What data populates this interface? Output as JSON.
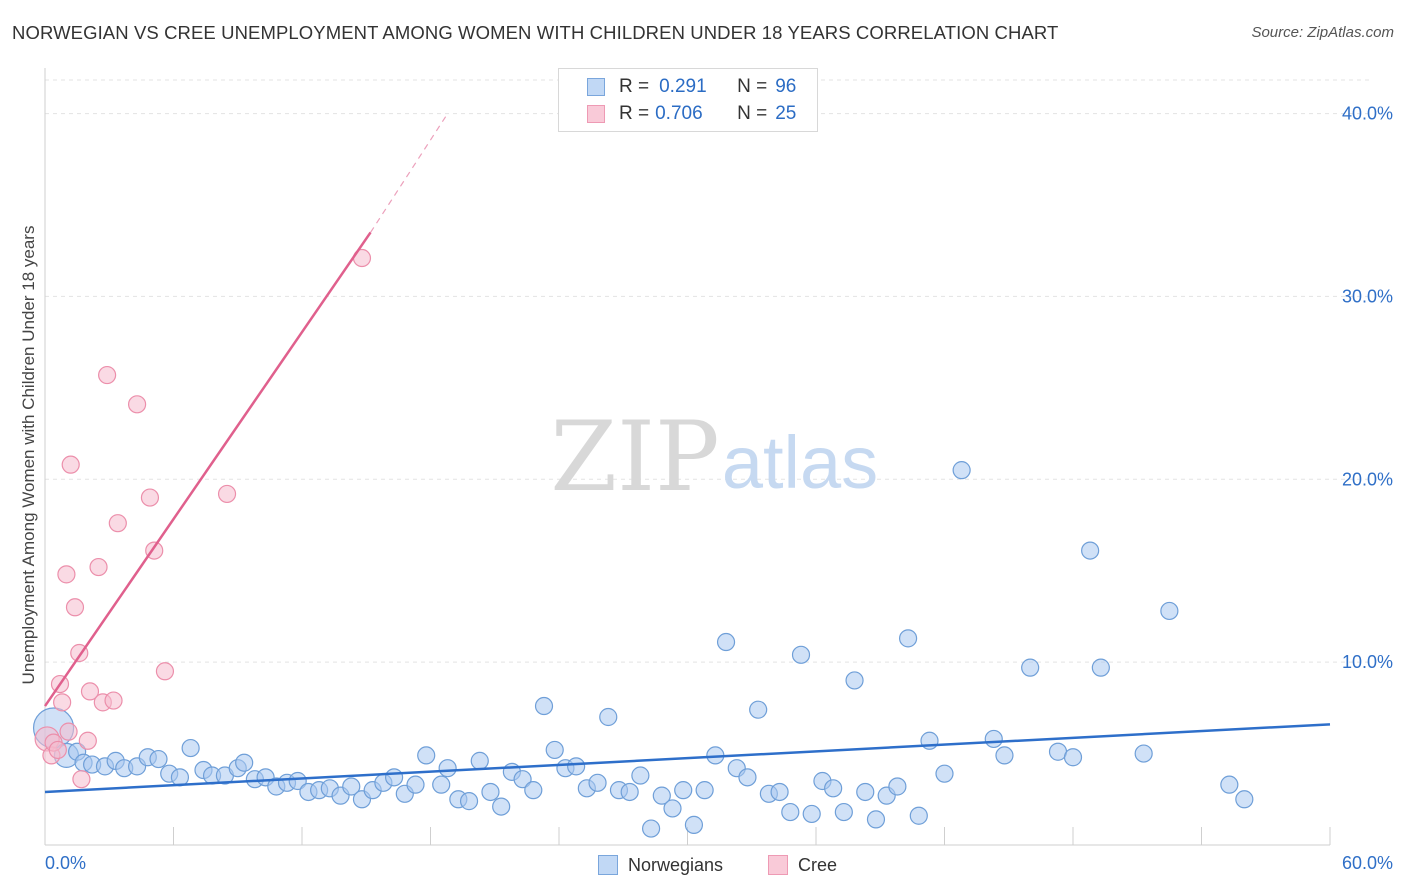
{
  "title": "NORWEGIAN VS CREE UNEMPLOYMENT AMONG WOMEN WITH CHILDREN UNDER 18 YEARS CORRELATION CHART",
  "source": "Source: ZipAtlas.com",
  "watermark": {
    "zip": "ZIP",
    "atlas": "atlas"
  },
  "legend": {
    "r_label": "R =",
    "n_label": "N =",
    "rows": [
      {
        "r": "0.291",
        "n": "96"
      },
      {
        "r": "0.706",
        "n": "25"
      }
    ]
  },
  "chart_data": {
    "type": "scatter",
    "title": "NORWEGIAN VS CREE UNEMPLOYMENT AMONG WOMEN WITH CHILDREN UNDER 18 YEARS CORRELATION CHART",
    "xlabel": "",
    "ylabel": "Unemployment Among Women with Children Under 18 years",
    "xlim": [
      0,
      60
    ],
    "ylim": [
      0,
      42
    ],
    "x_tick_labels": [
      "0.0%",
      "60.0%"
    ],
    "y_ticks": [
      10,
      20,
      30,
      40
    ],
    "y_tick_labels": [
      "10.0%",
      "20.0%",
      "30.0%",
      "40.0%"
    ],
    "grid": true,
    "legend_position": "top-center",
    "series": [
      {
        "name": "Norwegians",
        "color": "#a9c8f0",
        "edge": "#6f9fd8",
        "line_color": "#2e6fca",
        "trend": {
          "x0": 0,
          "y0": 2.9,
          "x1": 60,
          "y1": 6.6
        },
        "points": [
          [
            0.4,
            6.4,
            "l"
          ],
          [
            1.0,
            4.9,
            "m"
          ],
          [
            1.5,
            5.1
          ],
          [
            1.8,
            4.5
          ],
          [
            2.2,
            4.4
          ],
          [
            2.8,
            4.3
          ],
          [
            3.3,
            4.6
          ],
          [
            3.7,
            4.2
          ],
          [
            4.3,
            4.3
          ],
          [
            4.8,
            4.8
          ],
          [
            5.3,
            4.7
          ],
          [
            5.8,
            3.9
          ],
          [
            6.3,
            3.7
          ],
          [
            6.8,
            5.3
          ],
          [
            7.4,
            4.1
          ],
          [
            7.8,
            3.8
          ],
          [
            8.4,
            3.8
          ],
          [
            9.0,
            4.2
          ],
          [
            9.3,
            4.5
          ],
          [
            9.8,
            3.6
          ],
          [
            10.3,
            3.7
          ],
          [
            10.8,
            3.2
          ],
          [
            11.3,
            3.4
          ],
          [
            11.8,
            3.5
          ],
          [
            12.3,
            2.9
          ],
          [
            12.8,
            3.0
          ],
          [
            13.3,
            3.1
          ],
          [
            13.8,
            2.7
          ],
          [
            14.3,
            3.2
          ],
          [
            14.8,
            2.5
          ],
          [
            15.3,
            3.0
          ],
          [
            15.8,
            3.4
          ],
          [
            16.3,
            3.7
          ],
          [
            16.8,
            2.8
          ],
          [
            17.3,
            3.3
          ],
          [
            17.8,
            4.9
          ],
          [
            18.5,
            3.3
          ],
          [
            18.8,
            4.2
          ],
          [
            19.3,
            2.5
          ],
          [
            19.8,
            2.4
          ],
          [
            20.3,
            4.6
          ],
          [
            20.8,
            2.9
          ],
          [
            21.3,
            2.1
          ],
          [
            21.8,
            4.0
          ],
          [
            22.3,
            3.6
          ],
          [
            22.8,
            3.0
          ],
          [
            23.3,
            7.6
          ],
          [
            23.8,
            5.2
          ],
          [
            24.3,
            4.2
          ],
          [
            24.8,
            4.3
          ],
          [
            25.3,
            3.1
          ],
          [
            25.8,
            3.4
          ],
          [
            26.3,
            7.0
          ],
          [
            26.8,
            3.0
          ],
          [
            27.3,
            2.9
          ],
          [
            27.8,
            3.8
          ],
          [
            28.3,
            0.9
          ],
          [
            28.8,
            2.7
          ],
          [
            29.3,
            2.0
          ],
          [
            29.8,
            3.0
          ],
          [
            30.3,
            1.1
          ],
          [
            30.8,
            3.0
          ],
          [
            31.3,
            4.9
          ],
          [
            31.8,
            11.1
          ],
          [
            32.3,
            4.2
          ],
          [
            32.8,
            3.7
          ],
          [
            33.3,
            7.4
          ],
          [
            33.8,
            2.8
          ],
          [
            34.3,
            2.9
          ],
          [
            34.8,
            1.8
          ],
          [
            35.3,
            10.4
          ],
          [
            35.8,
            1.7
          ],
          [
            36.3,
            3.5
          ],
          [
            36.8,
            3.1
          ],
          [
            37.3,
            1.8
          ],
          [
            37.8,
            9.0
          ],
          [
            38.3,
            2.9
          ],
          [
            38.8,
            1.4
          ],
          [
            39.3,
            2.7
          ],
          [
            39.8,
            3.2
          ],
          [
            40.3,
            11.3
          ],
          [
            40.8,
            1.6
          ],
          [
            41.3,
            5.7
          ],
          [
            42.0,
            3.9
          ],
          [
            42.8,
            20.5
          ],
          [
            44.3,
            5.8
          ],
          [
            44.8,
            4.9
          ],
          [
            46.0,
            9.7
          ],
          [
            47.3,
            5.1
          ],
          [
            48.0,
            4.8
          ],
          [
            48.8,
            16.1
          ],
          [
            49.3,
            9.7
          ],
          [
            51.3,
            5.0
          ],
          [
            52.5,
            12.8
          ],
          [
            55.3,
            3.3
          ],
          [
            56.0,
            2.5
          ]
        ]
      },
      {
        "name": "Cree",
        "color": "#f6bccd",
        "edge": "#ec8fab",
        "line_color": "#e0608d",
        "trend": {
          "x0": 0,
          "y0": 7.6,
          "x1": 15.2,
          "y1": 33.5,
          "dash_to_x": 18.8,
          "dash_to_y": 40.0
        },
        "points": [
          [
            0.1,
            5.8,
            "m"
          ],
          [
            0.3,
            4.9
          ],
          [
            0.4,
            5.6
          ],
          [
            0.6,
            5.2
          ],
          [
            0.7,
            8.8
          ],
          [
            0.8,
            7.8
          ],
          [
            1.0,
            14.8
          ],
          [
            1.1,
            6.2
          ],
          [
            1.2,
            20.8
          ],
          [
            1.4,
            13.0
          ],
          [
            1.6,
            10.5
          ],
          [
            1.7,
            3.6
          ],
          [
            2.0,
            5.7
          ],
          [
            2.1,
            8.4
          ],
          [
            2.5,
            15.2
          ],
          [
            2.7,
            7.8
          ],
          [
            2.9,
            25.7
          ],
          [
            3.2,
            7.9
          ],
          [
            3.4,
            17.6
          ],
          [
            4.3,
            24.1
          ],
          [
            4.9,
            19.0
          ],
          [
            5.1,
            16.1
          ],
          [
            5.6,
            9.5
          ],
          [
            8.5,
            19.2
          ],
          [
            14.8,
            32.1
          ]
        ]
      }
    ]
  },
  "bottom_legend": [
    "Norwegians",
    "Cree"
  ]
}
